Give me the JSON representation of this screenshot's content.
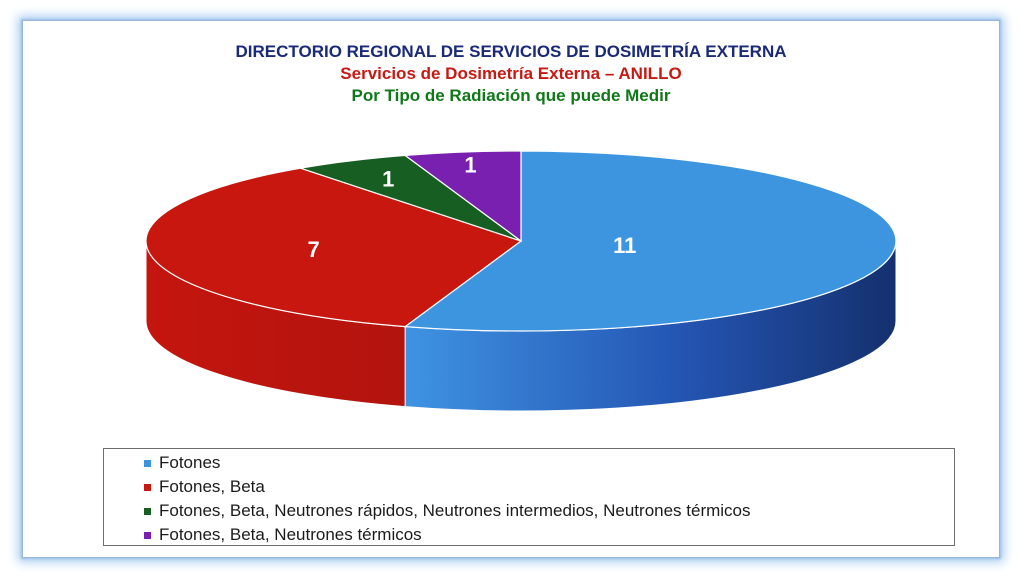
{
  "titles": {
    "line1": "DIRECTORIO REGIONAL DE SERVICIOS DE DOSIMETRÍA EXTERNA",
    "line2": "Servicios de Dosimetría Externa – ANILLO",
    "line3": "Por Tipo de Radiación que puede Medir"
  },
  "chart_data": {
    "type": "pie",
    "title": "DIRECTORIO REGIONAL DE SERVICIOS DE DOSIMETRÍA EXTERNA",
    "subtitle": "Servicios de Dosimetría Externa – ANILLO",
    "categories": [
      "Fotones",
      "Fotones, Beta",
      "Fotones, Beta, Neutrones rápidos, Neutrones intermedios, Neutrones térmicos",
      "Fotones, Beta, Neutrones térmicos"
    ],
    "values": [
      11,
      7,
      1,
      1
    ],
    "data_labels": [
      "11",
      "7",
      "1",
      "1"
    ],
    "colors": [
      "#3d95e0",
      "#c8170f",
      "#175e22",
      "#7a20b0"
    ],
    "side_colors": [
      "#2a5cb8",
      "#b01510",
      "#0f4718",
      "#5e178a"
    ],
    "legend_position": "bottom",
    "style": "3d"
  }
}
